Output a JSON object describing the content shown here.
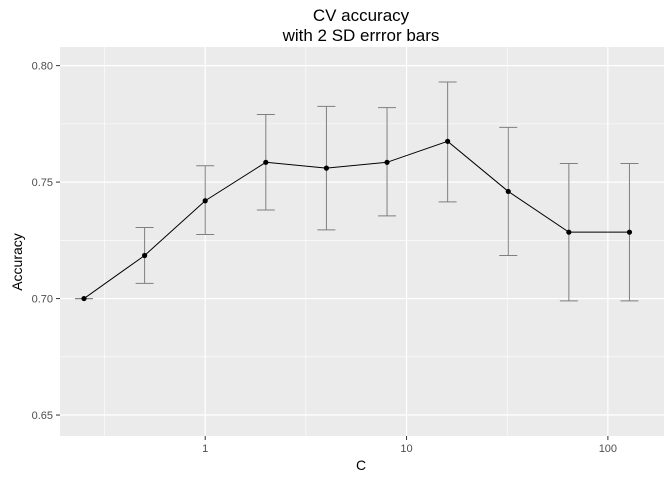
{
  "chart_data": {
    "type": "line",
    "title": "CV accuracy",
    "subtitle": "with 2 SD errror bars",
    "xlabel": "C",
    "ylabel": "Accuracy",
    "x_scale": "log10",
    "xlim": [
      0.19,
      190
    ],
    "ylim": [
      0.641,
      0.808
    ],
    "x_ticks": [
      1,
      10,
      100
    ],
    "x_tick_labels": [
      "1",
      "10",
      "100"
    ],
    "y_ticks": [
      0.65,
      0.7,
      0.75,
      0.8
    ],
    "y_tick_labels": [
      "0.65",
      "0.70",
      "0.75",
      "0.80"
    ],
    "grid": true,
    "legend": "none",
    "colors": {
      "panel": "#ebebeb",
      "grid": "#ffffff",
      "line": "#000000",
      "point": "#000000",
      "errorbar": "#7f7f7f"
    },
    "series": [
      {
        "x": [
          0.25,
          0.5,
          1,
          2,
          4,
          8,
          16,
          32,
          64,
          128
        ],
        "y": [
          0.7,
          0.7185,
          0.742,
          0.7585,
          0.756,
          0.7585,
          0.7675,
          0.746,
          0.7285,
          0.7285
        ],
        "lower": [
          0.7,
          0.7065,
          0.7275,
          0.738,
          0.7295,
          0.7355,
          0.7415,
          0.7185,
          0.699,
          0.699
        ],
        "upper": [
          0.7,
          0.7305,
          0.757,
          0.779,
          0.7825,
          0.782,
          0.793,
          0.7735,
          0.758,
          0.758
        ]
      }
    ]
  }
}
